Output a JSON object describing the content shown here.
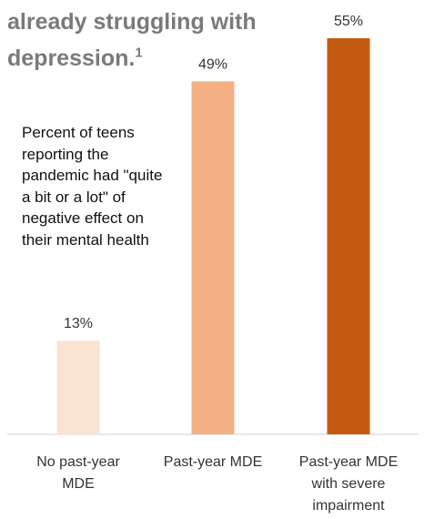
{
  "heading": {
    "line1": "already struggling with",
    "line2": "depression.",
    "footnote": "1"
  },
  "annotation": "Percent of teens reporting the pandemic had \"quite a bit or a lot\" of negative effect on their mental health",
  "chart_data": {
    "type": "bar",
    "categories": [
      [
        "No past-year",
        "MDE"
      ],
      [
        "Past-year MDE"
      ],
      [
        "Past-year MDE",
        "with severe",
        "impairment"
      ]
    ],
    "values": [
      13,
      49,
      55
    ],
    "value_labels": [
      "13%",
      "49%",
      "55%"
    ],
    "colors": [
      "#fae3d2",
      "#f4b183",
      "#c55a11"
    ],
    "ylim": [
      0,
      55
    ],
    "grid": false,
    "legend": "none"
  }
}
